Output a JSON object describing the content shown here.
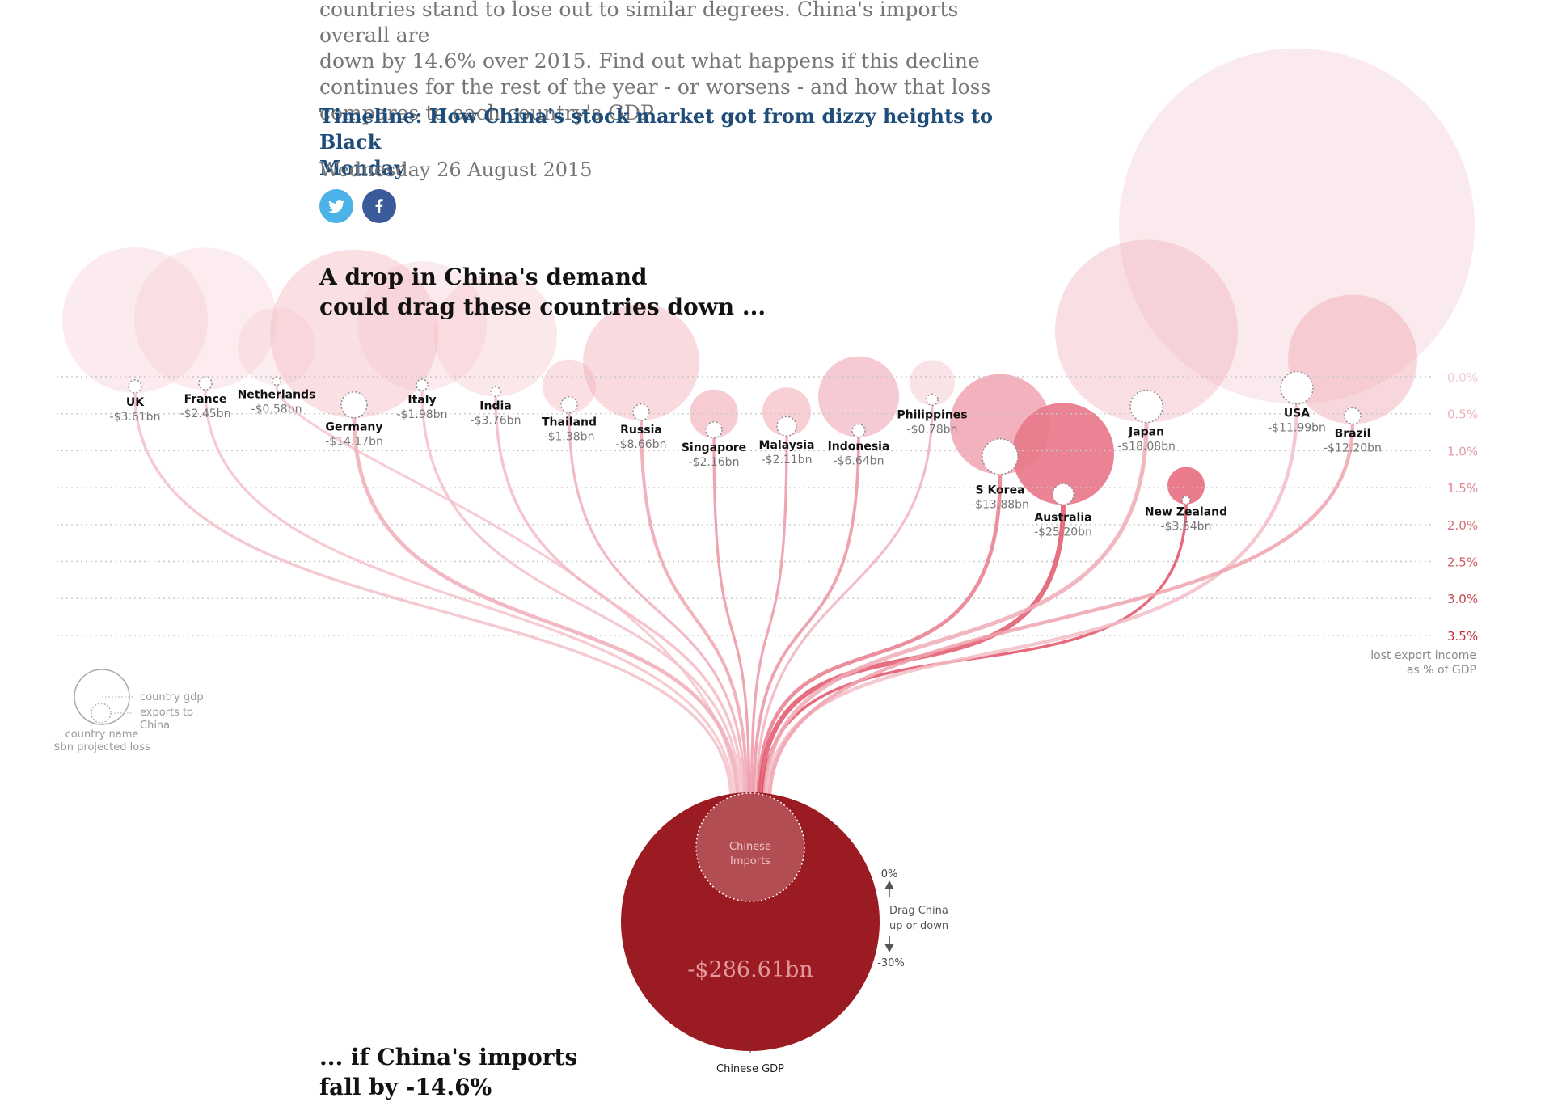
{
  "article": {
    "intro_lines": [
      "countries stand to lose out to similar degrees. China's imports overall are",
      "down by 14.6% over 2015. Find out what happens if this decline",
      "continues for the rest of the year - or worsens - and how that loss",
      "compares to each country's GDP"
    ],
    "timeline_link_lines": [
      "Timeline: How China's stock market got from dizzy heights to Black",
      "Monday"
    ],
    "date": "Wednesday 26 August 2015"
  },
  "share": {
    "twitter_icon": "twitter-icon",
    "facebook_icon": "facebook-icon"
  },
  "headline_top": [
    "A drop in China's demand",
    "could drag these countries down ..."
  ],
  "headline_bottom": [
    "... if China's imports",
    "fall by -14.6%"
  ],
  "scale": {
    "ticks": [
      "0.0%",
      "0.5%",
      "1.0%",
      "1.5%",
      "2.0%",
      "2.5%",
      "3.0%",
      "3.5%"
    ],
    "caption": [
      "lost export income",
      "as % of GDP"
    ]
  },
  "legend": {
    "gdp_label": "country gdp",
    "exports_label": [
      "exports to",
      "China"
    ],
    "name_label": "country name",
    "loss_label": "$bn projected loss"
  },
  "china": {
    "imports_label": [
      "Chinese",
      "Imports"
    ],
    "total_loss": "-$286.61bn",
    "gdp_label": "Chinese GDP",
    "drag_top": "0%",
    "drag_bottom": "-30%",
    "drag_hint": [
      "Drag China",
      "up or down"
    ],
    "color": "#9b1b23"
  },
  "chart_data": {
    "type": "bubble",
    "title": "",
    "value_unit": "$bn projected loss",
    "axis_label": "lost export income as % of GDP",
    "axis_range": [
      0.0,
      3.5
    ],
    "countries": [
      {
        "name": "UK",
        "loss": "-$3.61bn",
        "pct_gdp": 0.13
      },
      {
        "name": "France",
        "loss": "-$2.45bn",
        "pct_gdp": 0.09
      },
      {
        "name": "Netherlands",
        "loss": "-$0.58bn",
        "pct_gdp": 0.06
      },
      {
        "name": "Germany",
        "loss": "-$14.17bn",
        "pct_gdp": 0.38
      },
      {
        "name": "Italy",
        "loss": "-$1.98bn",
        "pct_gdp": 0.11
      },
      {
        "name": "India",
        "loss": "-$3.76bn",
        "pct_gdp": 0.2
      },
      {
        "name": "Thailand",
        "loss": "-$1.38bn",
        "pct_gdp": 0.38
      },
      {
        "name": "Russia",
        "loss": "-$8.66bn",
        "pct_gdp": 0.48
      },
      {
        "name": "Singapore",
        "loss": "-$2.16bn",
        "pct_gdp": 0.72
      },
      {
        "name": "Malaysia",
        "loss": "-$2.11bn",
        "pct_gdp": 0.67
      },
      {
        "name": "Indonesia",
        "loss": "-$6.64bn",
        "pct_gdp": 0.73
      },
      {
        "name": "Philippines",
        "loss": "-$0.78bn",
        "pct_gdp": 0.31
      },
      {
        "name": "S Korea",
        "loss": "-$13.88bn",
        "pct_gdp": 1.08
      },
      {
        "name": "Australia",
        "loss": "-$25.20bn",
        "pct_gdp": 1.59
      },
      {
        "name": "New Zealand",
        "loss": "-$3.54bn",
        "pct_gdp": 1.67
      },
      {
        "name": "Japan",
        "loss": "-$18.08bn",
        "pct_gdp": 0.4
      },
      {
        "name": "USA",
        "loss": "-$11.99bn",
        "pct_gdp": 0.15
      },
      {
        "name": "Brazil",
        "loss": "-$12.20bn",
        "pct_gdp": 0.53
      }
    ]
  }
}
